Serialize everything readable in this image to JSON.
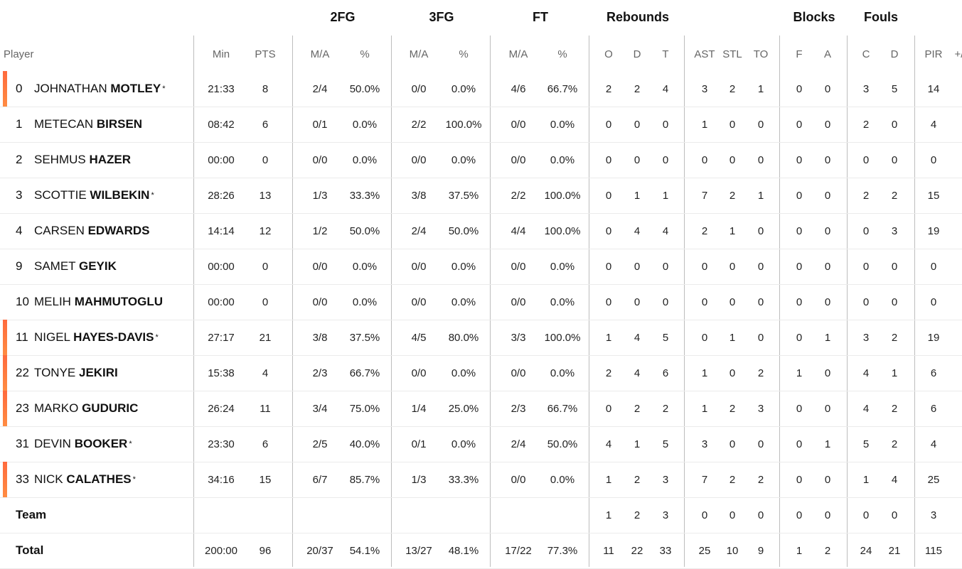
{
  "group_headers": [
    "2FG",
    "3FG",
    "FT",
    "Rebounds",
    "Blocks",
    "Fouls"
  ],
  "column_headers": [
    "Player",
    "Min",
    "PTS",
    "M/A",
    "%",
    "M/A",
    "%",
    "M/A",
    "%",
    "O",
    "D",
    "T",
    "AST",
    "STL",
    "TO",
    "F",
    "A",
    "C",
    "D",
    "PIR",
    "+/"
  ],
  "starter_marker": "*",
  "players": [
    {
      "number": "0",
      "first": "JOHNATHAN",
      "last": "MOTLEY",
      "starter": true,
      "stats": [
        "21:33",
        "8",
        "2/4",
        "50.0%",
        "0/0",
        "0.0%",
        "4/6",
        "66.7%",
        "2",
        "2",
        "4",
        "3",
        "2",
        "1",
        "0",
        "0",
        "3",
        "5",
        "14"
      ]
    },
    {
      "number": "1",
      "first": "METECAN",
      "last": "BIRSEN",
      "starter": false,
      "stats": [
        "08:42",
        "6",
        "0/1",
        "0.0%",
        "2/2",
        "100.0%",
        "0/0",
        "0.0%",
        "0",
        "0",
        "0",
        "1",
        "0",
        "0",
        "0",
        "0",
        "2",
        "0",
        "4"
      ]
    },
    {
      "number": "2",
      "first": "SEHMUS",
      "last": "HAZER",
      "starter": false,
      "stats": [
        "00:00",
        "0",
        "0/0",
        "0.0%",
        "0/0",
        "0.0%",
        "0/0",
        "0.0%",
        "0",
        "0",
        "0",
        "0",
        "0",
        "0",
        "0",
        "0",
        "0",
        "0",
        "0"
      ]
    },
    {
      "number": "3",
      "first": "SCOTTIE",
      "last": "WILBEKIN",
      "starter": true,
      "stats": [
        "28:26",
        "13",
        "1/3",
        "33.3%",
        "3/8",
        "37.5%",
        "2/2",
        "100.0%",
        "0",
        "1",
        "1",
        "7",
        "2",
        "1",
        "0",
        "0",
        "2",
        "2",
        "15"
      ]
    },
    {
      "number": "4",
      "first": "CARSEN",
      "last": "EDWARDS",
      "starter": false,
      "stats": [
        "14:14",
        "12",
        "1/2",
        "50.0%",
        "2/4",
        "50.0%",
        "4/4",
        "100.0%",
        "0",
        "4",
        "4",
        "2",
        "1",
        "0",
        "0",
        "0",
        "0",
        "3",
        "19"
      ]
    },
    {
      "number": "9",
      "first": "SAMET",
      "last": "GEYIK",
      "starter": false,
      "stats": [
        "00:00",
        "0",
        "0/0",
        "0.0%",
        "0/0",
        "0.0%",
        "0/0",
        "0.0%",
        "0",
        "0",
        "0",
        "0",
        "0",
        "0",
        "0",
        "0",
        "0",
        "0",
        "0"
      ]
    },
    {
      "number": "10",
      "first": "MELIH",
      "last": "MAHMUTOGLU",
      "starter": false,
      "stats": [
        "00:00",
        "0",
        "0/0",
        "0.0%",
        "0/0",
        "0.0%",
        "0/0",
        "0.0%",
        "0",
        "0",
        "0",
        "0",
        "0",
        "0",
        "0",
        "0",
        "0",
        "0",
        "0"
      ]
    },
    {
      "number": "11",
      "first": "NIGEL",
      "last": "HAYES-DAVIS",
      "starter": true,
      "stats": [
        "27:17",
        "21",
        "3/8",
        "37.5%",
        "4/5",
        "80.0%",
        "3/3",
        "100.0%",
        "1",
        "4",
        "5",
        "0",
        "1",
        "0",
        "0",
        "1",
        "3",
        "2",
        "19"
      ]
    },
    {
      "number": "22",
      "first": "TONYE",
      "last": "JEKIRI",
      "starter": false,
      "stats": [
        "15:38",
        "4",
        "2/3",
        "66.7%",
        "0/0",
        "0.0%",
        "0/0",
        "0.0%",
        "2",
        "4",
        "6",
        "1",
        "0",
        "2",
        "1",
        "0",
        "4",
        "1",
        "6"
      ]
    },
    {
      "number": "23",
      "first": "MARKO",
      "last": "GUDURIC",
      "starter": false,
      "stats": [
        "26:24",
        "11",
        "3/4",
        "75.0%",
        "1/4",
        "25.0%",
        "2/3",
        "66.7%",
        "0",
        "2",
        "2",
        "1",
        "2",
        "3",
        "0",
        "0",
        "4",
        "2",
        "6"
      ]
    },
    {
      "number": "31",
      "first": "DEVIN",
      "last": "BOOKER",
      "starter": true,
      "stats": [
        "23:30",
        "6",
        "2/5",
        "40.0%",
        "0/1",
        "0.0%",
        "2/4",
        "50.0%",
        "4",
        "1",
        "5",
        "3",
        "0",
        "0",
        "0",
        "1",
        "5",
        "2",
        "4"
      ]
    },
    {
      "number": "33",
      "first": "NICK",
      "last": "CALATHES",
      "starter": true,
      "stats": [
        "34:16",
        "15",
        "6/7",
        "85.7%",
        "1/3",
        "33.3%",
        "0/0",
        "0.0%",
        "1",
        "2",
        "3",
        "7",
        "2",
        "2",
        "0",
        "0",
        "1",
        "4",
        "25"
      ]
    }
  ],
  "oncourt": [
    true,
    false,
    false,
    false,
    false,
    false,
    false,
    true,
    true,
    true,
    false,
    true
  ],
  "team_row": {
    "label": "Team",
    "stats": [
      "",
      "",
      "",
      "",
      "",
      "",
      "",
      "",
      "1",
      "2",
      "3",
      "0",
      "0",
      "0",
      "0",
      "0",
      "0",
      "0",
      "3"
    ]
  },
  "total_row": {
    "label": "Total",
    "stats": [
      "200:00",
      "96",
      "20/37",
      "54.1%",
      "13/27",
      "48.1%",
      "17/22",
      "77.3%",
      "11",
      "22",
      "33",
      "25",
      "10",
      "9",
      "1",
      "2",
      "24",
      "21",
      "115"
    ]
  },
  "colors": {
    "accent": "#ff6a3d",
    "accent_end": "#ff8c42",
    "divider": "#bdbdbd",
    "row_line": "#ebebeb",
    "header_text": "#666666"
  }
}
